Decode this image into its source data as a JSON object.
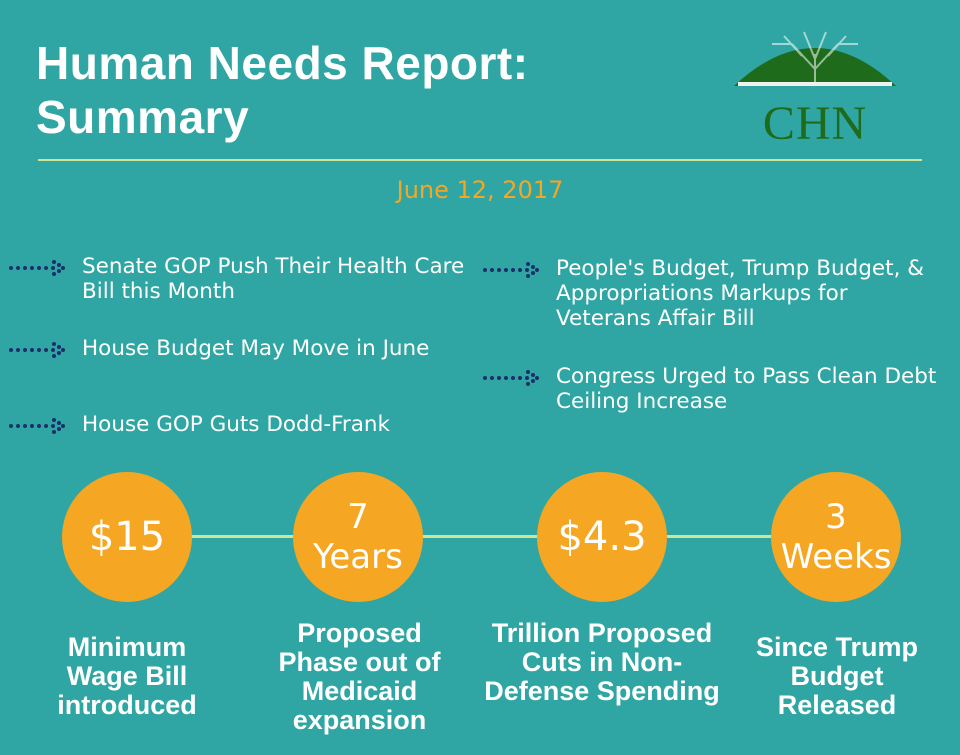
{
  "header": {
    "title_line1": "Human Needs Report:",
    "title_line2": "Summary",
    "logo_text": "CHN",
    "date": "June 12, 2017"
  },
  "bullets": [
    "Senate GOP Push Their Health Care Bill this Month",
    "House Budget May Move in June",
    "House GOP Guts Dodd-Frank",
    "People's Budget, Trump Budget, & Appropriations Markups for Veterans Affair Bill",
    "Congress Urged to Pass Clean Debt Ceiling Increase"
  ],
  "stats": [
    {
      "value": "$15",
      "unit": "",
      "label": "Minimum Wage Bill introduced"
    },
    {
      "value": "7",
      "unit": "Years",
      "label": "Proposed Phase out of Medicaid expansion"
    },
    {
      "value": "$4.3",
      "unit": "",
      "label": "Trillion Proposed Cuts in Non-Defense Spending"
    },
    {
      "value": "3",
      "unit": "Weeks",
      "label": "Since Trump Budget Released"
    }
  ],
  "colors": {
    "background": "#2fa6a3",
    "accent_orange": "#f5a623",
    "rule_green": "#c9e69a",
    "arrow_navy": "#1b2f6b",
    "logo_green": "#1e6b1c"
  }
}
